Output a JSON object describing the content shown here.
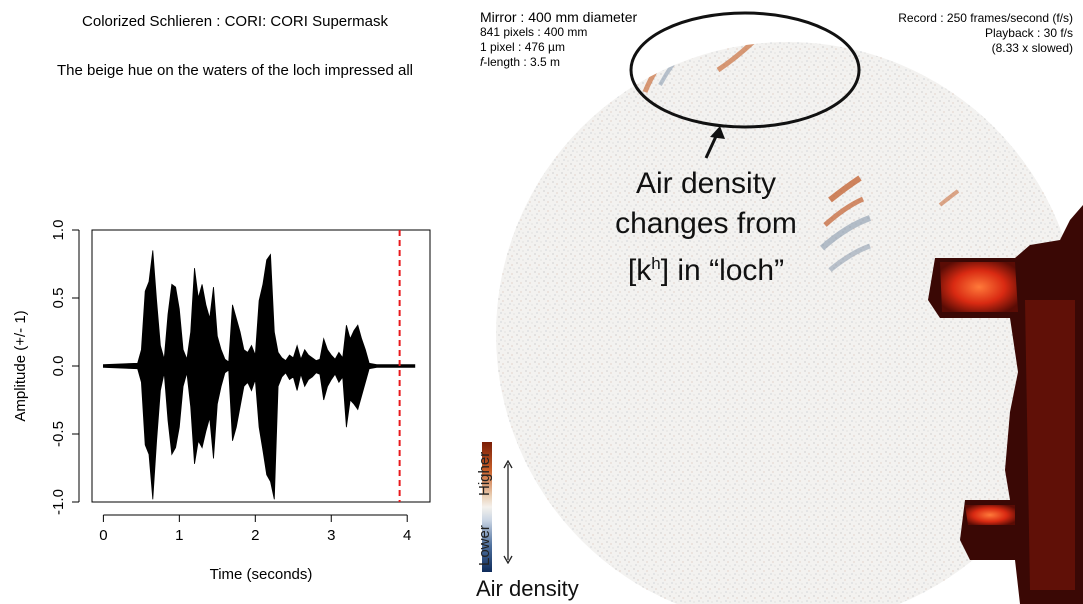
{
  "header": {
    "title": "Colorized Schlieren : CORI: CORI Supermask",
    "sentence": "The beige hue on the waters of the loch impressed all"
  },
  "recording_info": {
    "mirror": "Mirror :  400 mm diameter",
    "pixels": "841 pixels : 400 mm",
    "pixel_size": "1 pixel : 476 µm",
    "f_length_prefix": "f",
    "f_length_rest": "-length : 3.5 m"
  },
  "playback_info": {
    "record": "Record : 250 frames/second (f/s)",
    "playback": "Playback : 30 f/s",
    "slowed": "(8.33 x slowed)"
  },
  "annotation": {
    "line1": "Air density",
    "line2": "changes from",
    "line3_pre": "[k",
    "line3_sup": "h",
    "line3_post": "] in “loch”"
  },
  "legend": {
    "higher": "Higher",
    "lower": "Lower",
    "title": "Air density"
  },
  "colors": {
    "waveform": "#000000",
    "marker": "#e8191c",
    "density_high": "#c45a2a",
    "density_low": "#7d8fa6",
    "mask_glow": "#ff3c1e"
  },
  "chart_data": {
    "type": "line",
    "xlabel": "Time (seconds)",
    "ylabel": "Amplitude (+/- 1)",
    "xlim": [
      -0.15,
      4.3
    ],
    "ylim": [
      -1.0,
      1.0
    ],
    "x_ticks": [
      "0",
      "1",
      "2",
      "3",
      "4"
    ],
    "x_tick_values": [
      0,
      1,
      2,
      3,
      4
    ],
    "y_ticks": [
      "-1.0",
      "-0.5",
      "0.0",
      "0.5",
      "1.0"
    ],
    "y_tick_values": [
      -1.0,
      -0.5,
      0.0,
      0.5,
      1.0
    ],
    "cursor_time": 3.9,
    "series": [
      {
        "values_description_free": true,
        "x": [
          0.0,
          0.45,
          0.5,
          0.55,
          0.6,
          0.65,
          0.7,
          0.75,
          0.8,
          0.85,
          0.9,
          0.95,
          1.0,
          1.05,
          1.1,
          1.15,
          1.2,
          1.25,
          1.3,
          1.35,
          1.4,
          1.45,
          1.5,
          1.55,
          1.6,
          1.65,
          1.7,
          1.75,
          1.8,
          1.85,
          1.9,
          1.95,
          2.0,
          2.05,
          2.1,
          2.15,
          2.2,
          2.25,
          2.3,
          2.35,
          2.4,
          2.45,
          2.5,
          2.55,
          2.6,
          2.65,
          2.7,
          2.75,
          2.8,
          2.85,
          2.9,
          2.95,
          3.0,
          3.05,
          3.1,
          3.15,
          3.2,
          3.25,
          3.3,
          3.35,
          3.4,
          3.45,
          3.5,
          3.6,
          3.7,
          4.1
        ],
        "upper": [
          0.01,
          0.02,
          0.12,
          0.55,
          0.62,
          0.85,
          0.48,
          0.15,
          0.05,
          0.38,
          0.6,
          0.58,
          0.42,
          0.12,
          0.05,
          0.25,
          0.72,
          0.5,
          0.6,
          0.45,
          0.35,
          0.58,
          0.22,
          0.12,
          0.05,
          0.03,
          0.45,
          0.35,
          0.25,
          0.12,
          0.1,
          0.15,
          0.08,
          0.48,
          0.6,
          0.78,
          0.82,
          0.25,
          0.1,
          0.06,
          0.04,
          0.08,
          0.06,
          0.15,
          0.05,
          0.12,
          0.08,
          0.06,
          0.04,
          0.05,
          0.2,
          0.12,
          0.08,
          0.05,
          0.1,
          0.06,
          0.3,
          0.2,
          0.26,
          0.3,
          0.2,
          0.12,
          0.02,
          0.01,
          0.01,
          0.01
        ],
        "lower": [
          -0.01,
          -0.02,
          -0.12,
          -0.58,
          -0.65,
          -0.98,
          -0.55,
          -0.18,
          -0.05,
          -0.4,
          -0.65,
          -0.6,
          -0.45,
          -0.15,
          -0.05,
          -0.3,
          -0.72,
          -0.55,
          -0.6,
          -0.48,
          -0.38,
          -0.68,
          -0.28,
          -0.15,
          -0.05,
          -0.03,
          -0.55,
          -0.45,
          -0.3,
          -0.15,
          -0.12,
          -0.18,
          -0.1,
          -0.45,
          -0.62,
          -0.8,
          -0.85,
          -0.98,
          -0.15,
          -0.08,
          -0.05,
          -0.1,
          -0.08,
          -0.18,
          -0.06,
          -0.15,
          -0.1,
          -0.08,
          -0.05,
          -0.06,
          -0.25,
          -0.15,
          -0.1,
          -0.06,
          -0.12,
          -0.08,
          -0.45,
          -0.25,
          -0.28,
          -0.32,
          -0.22,
          -0.12,
          -0.02,
          -0.01,
          -0.01,
          -0.01
        ]
      }
    ]
  }
}
